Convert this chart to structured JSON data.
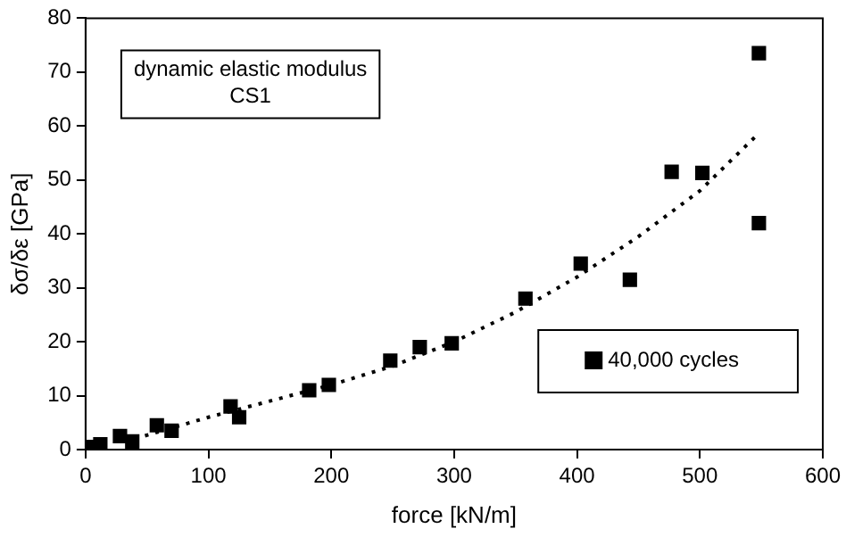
{
  "chart_data": {
    "type": "scatter",
    "xlabel": "force [kN/m]",
    "ylabel": "δσ/δε [GPa]",
    "annotations": [
      "dynamic elastic modulus\nCS1"
    ],
    "xlim": [
      0,
      600
    ],
    "xticks": [
      0,
      100,
      200,
      300,
      400,
      500,
      600
    ],
    "ylim": [
      0,
      80
    ],
    "yticks": [
      0,
      10,
      20,
      30,
      40,
      50,
      60,
      70,
      80
    ],
    "grid": false,
    "legend": "bottom right",
    "marker": "square",
    "series": [
      {
        "name": "40,000 cycles",
        "color": "#000000",
        "type": "scatter",
        "x": [
          2,
          12,
          28,
          38,
          58,
          70,
          118,
          125,
          182,
          198,
          248,
          272,
          298,
          358,
          403,
          443,
          477,
          502,
          548,
          548
        ],
        "values": [
          0.5,
          1,
          2.5,
          1.5,
          4.5,
          3.5,
          8,
          6,
          11,
          12,
          16.5,
          19,
          19.7,
          28,
          34.5,
          31.5,
          51.5,
          51.3,
          42,
          73.5
        ]
      },
      {
        "color": "#000000",
        "type": "line",
        "line_style": "dotted",
        "marker": "none",
        "x": [
          40,
          100,
          150,
          200,
          250,
          300,
          350,
          400,
          450,
          500,
          545
        ],
        "values": [
          2,
          6,
          9,
          12,
          15.5,
          20,
          25.5,
          32,
          39.5,
          48,
          58
        ]
      }
    ]
  }
}
